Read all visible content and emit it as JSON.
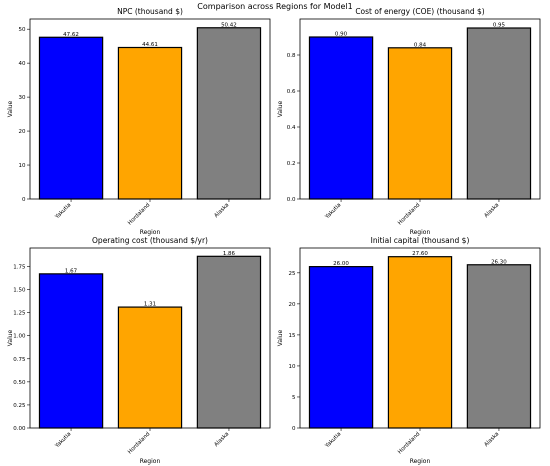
{
  "figure": {
    "title": "Comparison across Regions for Model1"
  },
  "colors": {
    "Yakutia": "#0000ff",
    "Hordaland": "#ffa500",
    "Alaska": "#808080"
  },
  "chart_data": [
    {
      "type": "bar",
      "title": "NPC (thousand $)",
      "xlabel": "Region",
      "ylabel": "Value",
      "categories": [
        "Yakutia",
        "Hordaland",
        "Alaska"
      ],
      "values": [
        47.62,
        44.61,
        50.42
      ],
      "value_labels": [
        "47.62",
        "44.61",
        "50.42"
      ],
      "ylim": [
        0,
        53
      ],
      "yticks": [
        0,
        10,
        20,
        30,
        40,
        50
      ],
      "ytick_labels": [
        "0",
        "10",
        "20",
        "30",
        "40",
        "50"
      ],
      "grid": false
    },
    {
      "type": "bar",
      "title": "Cost of energy (COE) (thousand $)",
      "xlabel": "Region",
      "ylabel": "Value",
      "categories": [
        "Yakutia",
        "Hordaland",
        "Alaska"
      ],
      "values": [
        0.9,
        0.84,
        0.95
      ],
      "value_labels": [
        "0.90",
        "0.84",
        "0.95"
      ],
      "ylim": [
        0,
        1.0
      ],
      "yticks": [
        0,
        0.2,
        0.4,
        0.6,
        0.8
      ],
      "ytick_labels": [
        "0.0",
        "0.2",
        "0.4",
        "0.6",
        "0.8"
      ],
      "grid": false
    },
    {
      "type": "bar",
      "title": "Operating cost (thousand $/yr)",
      "xlabel": "Region",
      "ylabel": "Value",
      "categories": [
        "Yakutia",
        "Hordaland",
        "Alaska"
      ],
      "values": [
        1.67,
        1.31,
        1.86
      ],
      "value_labels": [
        "1.67",
        "1.31",
        "1.86"
      ],
      "ylim": [
        0,
        1.95
      ],
      "yticks": [
        0,
        0.25,
        0.5,
        0.75,
        1.0,
        1.25,
        1.5,
        1.75
      ],
      "ytick_labels": [
        "0.00",
        "0.25",
        "0.50",
        "0.75",
        "1.00",
        "1.25",
        "1.50",
        "1.75"
      ],
      "grid": false
    },
    {
      "type": "bar",
      "title": "Initial capital (thousand $)",
      "xlabel": "Region",
      "ylabel": "Value",
      "categories": [
        "Yakutia",
        "Hordaland",
        "Alaska"
      ],
      "values": [
        26.0,
        27.6,
        26.3
      ],
      "value_labels": [
        "26.00",
        "27.60",
        "26.30"
      ],
      "ylim": [
        0,
        29
      ],
      "yticks": [
        0,
        5,
        10,
        15,
        20,
        25
      ],
      "ytick_labels": [
        "0",
        "5",
        "10",
        "15",
        "20",
        "25"
      ],
      "grid": false
    }
  ]
}
